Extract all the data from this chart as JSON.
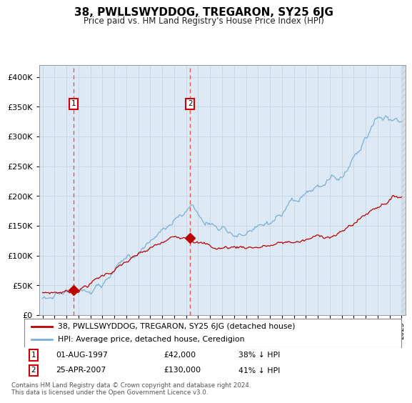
{
  "title": "38, PWLLSWYDDOG, TREGARON, SY25 6JG",
  "subtitle": "Price paid vs. HM Land Registry's House Price Index (HPI)",
  "legend_line1": "38, PWLLSWYDDOG, TREGARON, SY25 6JG (detached house)",
  "legend_line2": "HPI: Average price, detached house, Ceredigion",
  "annotation1_label": "1",
  "annotation1_date": "01-AUG-1997",
  "annotation1_price": "£42,000",
  "annotation1_pct": "38% ↓ HPI",
  "annotation1_year": 1997.58,
  "annotation1_value": 42000,
  "annotation2_label": "2",
  "annotation2_date": "25-APR-2007",
  "annotation2_price": "£130,000",
  "annotation2_pct": "41% ↓ HPI",
  "annotation2_year": 2007.32,
  "annotation2_value": 130000,
  "red_line_color": "#bb0000",
  "blue_line_color": "#7bafd4",
  "dashed_line_color": "#ee5555",
  "annotation_box_color": "#cc0000",
  "grid_color": "#c8d8e8",
  "background_color": "#ddeaf5",
  "hatch_color": "#bbbbbb",
  "footer_text": "Contains HM Land Registry data © Crown copyright and database right 2024.\nThis data is licensed under the Open Government Licence v3.0.",
  "ylim": [
    0,
    420000
  ],
  "xlim_start": 1994.7,
  "xlim_end": 2025.3
}
